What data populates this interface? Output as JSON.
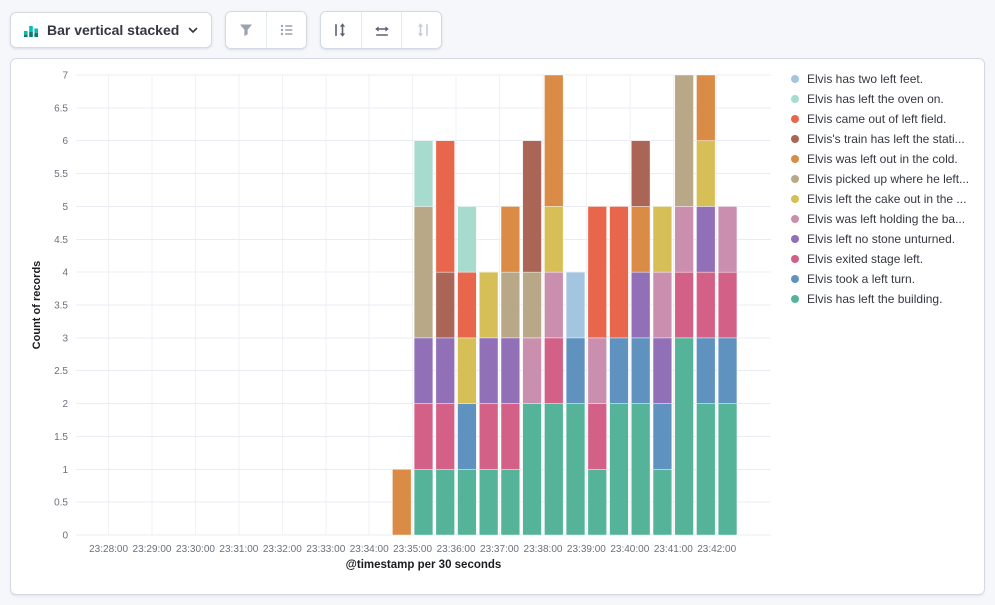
{
  "toolbar": {
    "chart_type_label": "Bar vertical stacked",
    "display_group": [
      {
        "name": "values-button",
        "icon": "filter-icon"
      },
      {
        "name": "legend-button",
        "icon": "list-icon"
      }
    ],
    "axis_group": [
      {
        "name": "left-axis-button",
        "icon": "left-axis-icon",
        "disabled": false
      },
      {
        "name": "bottom-axis-button",
        "icon": "bottom-axis-icon",
        "disabled": false
      },
      {
        "name": "right-axis-button",
        "icon": "right-axis-icon",
        "disabled": true
      }
    ]
  },
  "chart_data": {
    "type": "bar",
    "stacked": true,
    "orientation": "vertical",
    "title": "",
    "xlabel": "@timestamp per 30 seconds",
    "ylabel": "Count of records",
    "ylim": [
      0,
      7
    ],
    "grid": true,
    "legend_position": "right",
    "y_ticks": [
      "0",
      "0.5",
      "1",
      "1.5",
      "2",
      "2.5",
      "3",
      "3.5",
      "4",
      "4.5",
      "5",
      "5.5",
      "6",
      "6.5",
      "7"
    ],
    "x_ticks": [
      "23:28:00",
      "23:29:00",
      "23:30:00",
      "23:31:00",
      "23:32:00",
      "23:33:00",
      "23:34:00",
      "23:35:00",
      "23:36:00",
      "23:37:00",
      "23:38:00",
      "23:39:00",
      "23:40:00",
      "23:41:00",
      "23:42:00"
    ],
    "slots": [
      "23:34:30",
      "23:35:00",
      "23:35:30",
      "23:36:00",
      "23:36:30",
      "23:37:00",
      "23:37:30",
      "23:38:00",
      "23:38:30",
      "23:39:00",
      "23:39:30",
      "23:40:00",
      "23:40:30",
      "23:41:00",
      "23:41:30",
      "23:42:00"
    ],
    "series_order": "bottom_to_top (legend shows reverse order)",
    "series": [
      {
        "name": "Elvis has left the building.",
        "color": "#54B399",
        "values": [
          0,
          1,
          1,
          1,
          1,
          1,
          2,
          2,
          2,
          1,
          2,
          2,
          1,
          3,
          2,
          2
        ]
      },
      {
        "name": "Elvis took a left turn.",
        "color": "#6092C0",
        "values": [
          0,
          0,
          0,
          1,
          0,
          0,
          0,
          0,
          1,
          0,
          1,
          1,
          1,
          0,
          1,
          1
        ]
      },
      {
        "name": "Elvis exited stage left.",
        "color": "#D36086",
        "values": [
          0,
          1,
          1,
          0,
          1,
          1,
          0,
          1,
          0,
          1,
          0,
          0,
          0,
          1,
          1,
          1
        ]
      },
      {
        "name": "Elvis left no stone unturned.",
        "color": "#9170B8",
        "values": [
          0,
          1,
          1,
          0,
          1,
          1,
          0,
          0,
          0,
          0,
          0,
          1,
          1,
          0,
          1,
          0
        ]
      },
      {
        "name": "Elvis was left holding the ba...",
        "color": "#CA8EAE",
        "values": [
          0,
          0,
          0,
          0,
          0,
          0,
          1,
          1,
          0,
          1,
          0,
          0,
          1,
          1,
          0,
          1
        ]
      },
      {
        "name": "Elvis left the cake out in the ...",
        "color": "#D6BF57",
        "values": [
          0,
          0,
          0,
          1,
          1,
          0,
          0,
          1,
          0,
          0,
          0,
          0,
          1,
          0,
          1,
          0
        ]
      },
      {
        "name": "Elvis picked up where he left...",
        "color": "#B9A888",
        "values": [
          0,
          2,
          0,
          0,
          0,
          1,
          1,
          0,
          0,
          0,
          0,
          0,
          0,
          2,
          0,
          0
        ]
      },
      {
        "name": "Elvis was left out in the cold.",
        "color": "#DA8B45",
        "values": [
          1,
          0,
          0,
          0,
          0,
          1,
          0,
          2,
          0,
          0,
          0,
          1,
          0,
          0,
          1,
          0
        ]
      },
      {
        "name": "Elvis's train has left the stati...",
        "color": "#AA6556",
        "values": [
          0,
          0,
          1,
          0,
          0,
          0,
          2,
          0,
          0,
          0,
          0,
          1,
          0,
          0,
          0,
          0
        ]
      },
      {
        "name": "Elvis came out of left field.",
        "color": "#E7664C",
        "values": [
          0,
          0,
          2,
          1,
          0,
          0,
          0,
          0,
          0,
          2,
          2,
          0,
          0,
          0,
          0,
          0
        ]
      },
      {
        "name": "Elvis has left the oven on.",
        "color": "#A6DBCE",
        "values": [
          0,
          1,
          0,
          1,
          0,
          0,
          0,
          0,
          0,
          0,
          0,
          0,
          0,
          0,
          0,
          0
        ]
      },
      {
        "name": "Elvis has two left feet.",
        "color": "#A3C5E0",
        "values": [
          0,
          0,
          0,
          0,
          0,
          0,
          0,
          0,
          1,
          0,
          0,
          0,
          0,
          0,
          0,
          0
        ]
      }
    ]
  }
}
